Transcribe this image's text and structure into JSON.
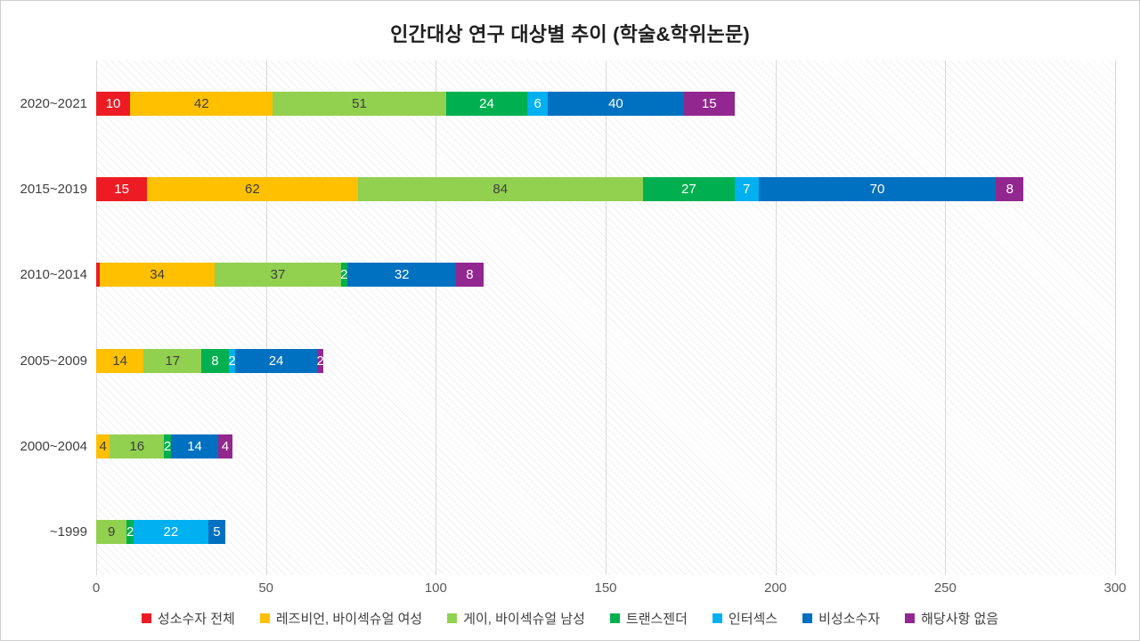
{
  "title": "인간대상 연구 대상별 추이 (학술&학위논문)",
  "chart_data": {
    "type": "bar",
    "orientation": "horizontal",
    "stacked": true,
    "title": "인간대상 연구 대상별 추이 (학술&학위논문)",
    "categories": [
      "2020~2021",
      "2015~2019",
      "2010~2014",
      "2005~2009",
      "2000~2004",
      "~1999"
    ],
    "series": [
      {
        "name": "성소수자 전체",
        "color": "#ed1c24",
        "label_color": "#ffffff",
        "values": [
          10,
          15,
          1,
          0,
          0,
          0
        ]
      },
      {
        "name": "레즈비언, 바이섹슈얼 여성",
        "color": "#ffc000",
        "label_color": "#3f3f3f",
        "values": [
          42,
          62,
          34,
          14,
          4,
          0
        ]
      },
      {
        "name": "게이, 바이섹슈얼 남성",
        "color": "#92d050",
        "label_color": "#3f3f3f",
        "values": [
          51,
          84,
          37,
          17,
          16,
          9
        ]
      },
      {
        "name": "트랜스젠더",
        "color": "#00b050",
        "label_color": "#ffffff",
        "values": [
          24,
          27,
          2,
          8,
          2,
          2
        ]
      },
      {
        "name": "인터섹스",
        "color": "#00b0f0",
        "label_color": "#ffffff",
        "values": [
          6,
          7,
          0,
          2,
          0,
          22
        ]
      },
      {
        "name": "비성소수자",
        "color": "#0070c0",
        "label_color": "#ffffff",
        "values": [
          40,
          70,
          32,
          24,
          14,
          5
        ]
      },
      {
        "name": "해당사항 없음",
        "color": "#92278f",
        "label_color": "#ffffff",
        "values": [
          15,
          8,
          8,
          2,
          4,
          0
        ]
      }
    ],
    "xlim": [
      0,
      300
    ],
    "x_ticks": [
      0,
      50,
      100,
      150,
      200,
      250,
      300
    ],
    "grid": true,
    "legend_position": "bottom"
  }
}
